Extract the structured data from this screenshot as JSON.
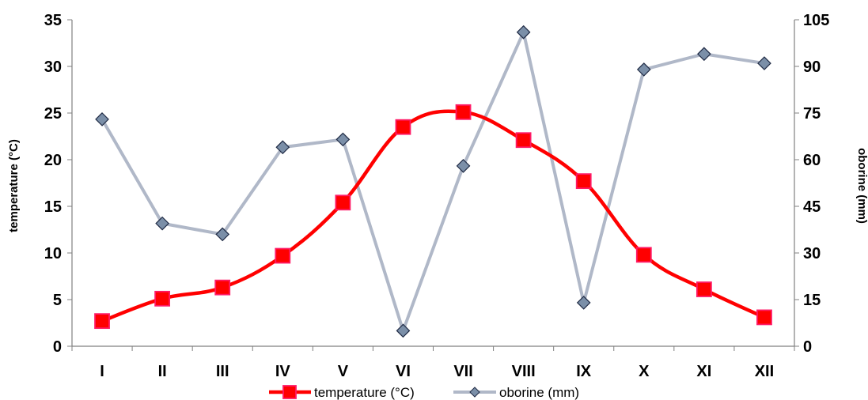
{
  "chart_data": {
    "type": "line",
    "categories": [
      "I",
      "II",
      "III",
      "IV",
      "V",
      "VI",
      "VII",
      "VIII",
      "IX",
      "X",
      "XI",
      "XII"
    ],
    "ylabel": "temperature (°C)",
    "y2label": "oborine (mm)",
    "ylim": [
      0,
      35
    ],
    "y2lim": [
      0,
      105
    ],
    "yticks": [
      "0",
      "5",
      "10",
      "15",
      "20",
      "25",
      "30",
      "35"
    ],
    "y2ticks": [
      "0",
      "15",
      "30",
      "45",
      "60",
      "75",
      "90",
      "105"
    ],
    "grid": false,
    "legend_position": "bottom",
    "series": [
      {
        "name": "temperature (°C)",
        "axis": "left",
        "color": "#ff0000",
        "marker_color": "#ff1a66",
        "marker": "square",
        "values": [
          2.7,
          5.1,
          6.3,
          9.7,
          15.4,
          23.5,
          25.1,
          22.1,
          17.7,
          9.8,
          6.1,
          3.1
        ]
      },
      {
        "name": "oborine (mm)",
        "axis": "right",
        "color": "#b0b8c8",
        "marker_color": "#7b8fa8",
        "marker": "diamond",
        "values": [
          73,
          39.5,
          36,
          64,
          66.5,
          5,
          58,
          101,
          14,
          89,
          94,
          91
        ]
      }
    ]
  }
}
